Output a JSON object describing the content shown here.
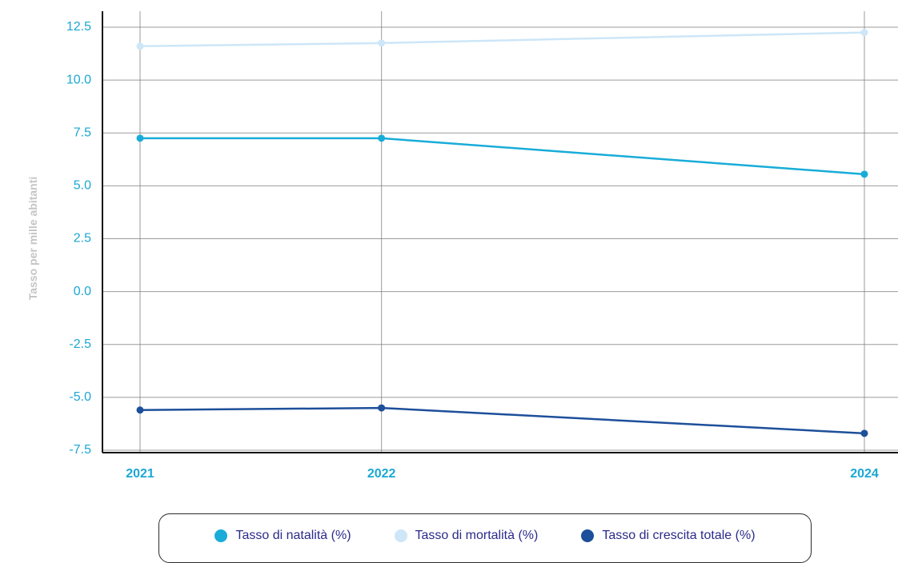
{
  "colors": {
    "tick_text": "#1ba7d3",
    "axis_label": "#c5c5c5",
    "legend_text": "#2b2b8c"
  },
  "chart_data": {
    "type": "line",
    "title": "",
    "xlabel": "",
    "ylabel": "Tasso per mille abitanti",
    "x": [
      "2021",
      "2022",
      "2024"
    ],
    "x_numeric": [
      2021,
      2022,
      2024
    ],
    "ylim": [
      -7.5,
      12.5
    ],
    "y_ticks": [
      "12.5",
      "10.0",
      "7.5",
      "5.0",
      "2.5",
      "0.0",
      "-2.5",
      "-5.0",
      "-7.5"
    ],
    "grid": true,
    "legend_position": "bottom",
    "series": [
      {
        "name": "Tasso di natalità (%)",
        "color": "#19acd8",
        "values": [
          7.25,
          7.25,
          5.55
        ]
      },
      {
        "name": "Tasso di mortalità (%)",
        "color": "#cde6f8",
        "values": [
          11.6,
          11.75,
          12.25
        ]
      },
      {
        "name": "Tasso di crescita totale (%)",
        "color": "#1d4f9a",
        "values": [
          -5.6,
          -5.5,
          -6.7
        ]
      }
    ]
  }
}
